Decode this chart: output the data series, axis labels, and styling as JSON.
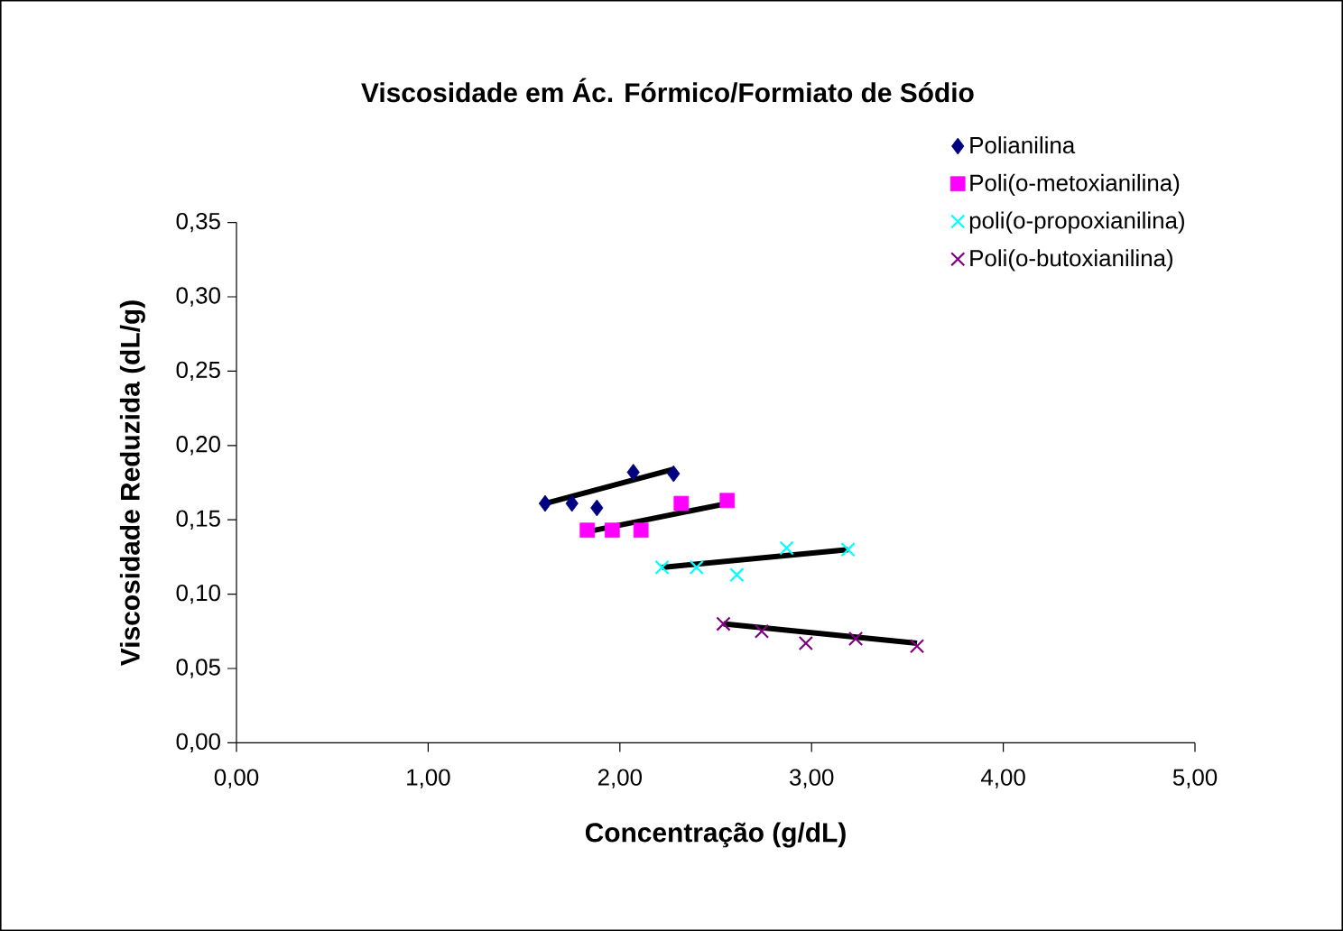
{
  "chart_data": {
    "type": "scatter",
    "title": "Viscosidade em Ác. Fórmico/Formiato de Sódio",
    "xlabel": "Concentração (g/dL)",
    "ylabel": "Viscosidade Reduzida (dL/g)",
    "xlim": [
      0,
      5
    ],
    "ylim": [
      0,
      0.35
    ],
    "xticks": [
      {
        "value": 0,
        "label": "0,00"
      },
      {
        "value": 1,
        "label": "1,00"
      },
      {
        "value": 2,
        "label": "2,00"
      },
      {
        "value": 3,
        "label": "3,00"
      },
      {
        "value": 4,
        "label": "4,00"
      },
      {
        "value": 5,
        "label": "5,00"
      }
    ],
    "yticks": [
      {
        "value": 0,
        "label": "0,00"
      },
      {
        "value": 0.05,
        "label": "0,05"
      },
      {
        "value": 0.1,
        "label": "0,10"
      },
      {
        "value": 0.15,
        "label": "0,15"
      },
      {
        "value": 0.2,
        "label": "0,20"
      },
      {
        "value": 0.25,
        "label": "0,25"
      },
      {
        "value": 0.3,
        "label": "0,30"
      },
      {
        "value": 0.35,
        "label": "0,35"
      }
    ],
    "grid": false,
    "legend": "top right",
    "series": [
      {
        "name": "Polianilina",
        "color": "#000080",
        "marker": "diamond",
        "x": [
          1.61,
          1.75,
          1.88,
          2.07,
          2.28
        ],
        "values": [
          0.161,
          0.161,
          0.158,
          0.182,
          0.181
        ]
      },
      {
        "name": "Poli(o-metoxianilina)",
        "color": "#ff00ff",
        "marker": "square",
        "x": [
          1.83,
          1.96,
          2.11,
          2.32,
          2.56
        ],
        "values": [
          0.143,
          0.143,
          0.143,
          0.161,
          0.163
        ]
      },
      {
        "name": "poli(o-propoxianilina)",
        "color": "#00ffff",
        "marker": "cross",
        "x": [
          2.22,
          2.4,
          2.61,
          2.87,
          3.19
        ],
        "values": [
          0.118,
          0.118,
          0.113,
          0.131,
          0.13
        ]
      },
      {
        "name": "Poli(o-butoxianilina)",
        "color": "#800080",
        "marker": "cross",
        "x": [
          2.54,
          2.74,
          2.97,
          3.23,
          3.55
        ],
        "values": [
          0.08,
          0.075,
          0.067,
          0.07,
          0.065
        ]
      },
      {
        "type": "line",
        "color": "#000000",
        "marker": "none",
        "line_style": "solid",
        "x": [
          1.61,
          2.28
        ],
        "values": [
          0.161,
          0.184
        ]
      },
      {
        "type": "line",
        "color": "#000000",
        "marker": "none",
        "line_style": "solid",
        "x": [
          1.83,
          2.56
        ],
        "values": [
          0.142,
          0.161
        ]
      },
      {
        "type": "line",
        "color": "#000000",
        "marker": "none",
        "line_style": "solid",
        "x": [
          2.22,
          3.19
        ],
        "values": [
          0.118,
          0.13
        ]
      },
      {
        "type": "line",
        "color": "#000000",
        "marker": "none",
        "line_style": "solid",
        "x": [
          2.54,
          3.55
        ],
        "values": [
          0.08,
          0.067
        ]
      }
    ]
  }
}
